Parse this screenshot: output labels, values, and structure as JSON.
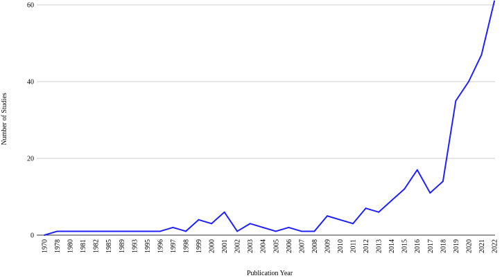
{
  "chart_data": {
    "type": "line",
    "xlabel": "Publication Year",
    "ylabel": "Number of Studies",
    "ylim": [
      0,
      60
    ],
    "y_ticks": [
      "0",
      "20",
      "40",
      "60"
    ],
    "grid": "horizontal",
    "line_color": "#1f1fff",
    "grid_color": "#cccccc",
    "categories": [
      "1970",
      "1978",
      "1980",
      "1981",
      "1982",
      "1985",
      "1989",
      "1993",
      "1995",
      "1996",
      "1997",
      "1998",
      "1999",
      "2000",
      "2001",
      "2002",
      "2003",
      "2004",
      "2005",
      "2006",
      "2007",
      "2008",
      "2009",
      "2010",
      "2011",
      "2012",
      "2013",
      "2014",
      "2015",
      "2016",
      "2017",
      "2018",
      "2019",
      "2020",
      "2021",
      "2022"
    ],
    "series": [
      {
        "values": [
          0,
          1,
          1,
          1,
          1,
          1,
          1,
          1,
          1,
          1,
          2,
          1,
          4,
          3,
          6,
          1,
          3,
          2,
          1,
          2,
          1,
          1,
          5,
          4,
          3,
          7,
          6,
          9,
          12,
          17,
          11,
          14,
          35,
          40,
          47,
          61
        ]
      }
    ]
  }
}
